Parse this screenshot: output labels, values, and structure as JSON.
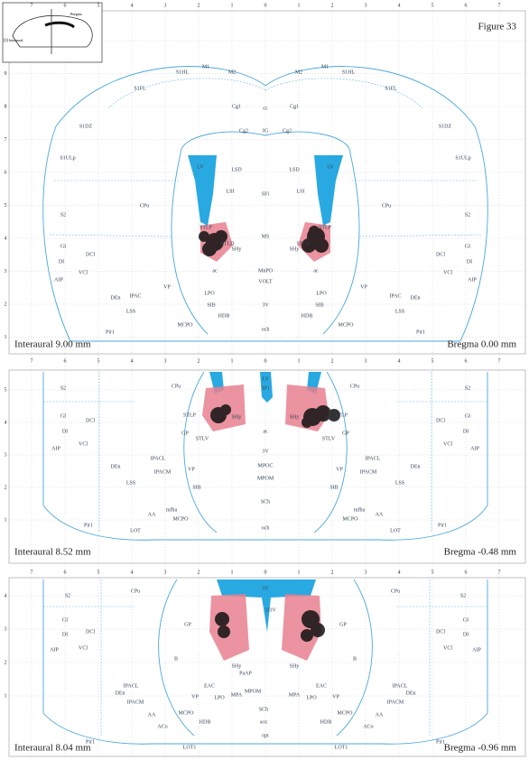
{
  "figure_label": "Figure 33",
  "ruler": [
    "7",
    "6",
    "5",
    "4",
    "3",
    "2",
    "1",
    "0",
    "1",
    "2",
    "3",
    "4",
    "5",
    "6",
    "7"
  ],
  "inset": {
    "labels": [
      "Interaural",
      "Bregma"
    ]
  },
  "panels": [
    {
      "interaural": "Interaural 9.00 mm",
      "bregma": "Bregma 0.00 mm",
      "side_ticks": [
        "10",
        "9",
        "8",
        "7",
        "6",
        "5",
        "4",
        "3",
        "2",
        "1"
      ],
      "regions": [
        "S1FL",
        "S1HL",
        "M1",
        "M2",
        "Cg1",
        "Cg2",
        "S1DZ",
        "S1ULp",
        "S2",
        "CPu",
        "GI",
        "DI",
        "AIP",
        "LV",
        "LSD",
        "LSI",
        "STLP",
        "STLD",
        "SHy",
        "VP",
        "LPO",
        "SIB",
        "HDB",
        "MCPO",
        "IPAC",
        "Pir1",
        "DEn",
        "DCl",
        "VCl",
        "LSS",
        "ac"
      ],
      "midline": [
        "cc",
        "SFi",
        "MS",
        "MnPO",
        "VOLT",
        "och",
        "3V",
        "IG"
      ]
    },
    {
      "interaural": "Interaural 8.52 mm",
      "bregma": "Bregma -0.48 mm",
      "side_ticks": [
        "5",
        "4",
        "3",
        "2",
        "1"
      ],
      "regions": [
        "S2",
        "CPu",
        "GI",
        "DI",
        "AIP",
        "DEn",
        "IPACL",
        "IPACM",
        "GP",
        "STLP",
        "VP",
        "SIB",
        "LSS",
        "mfba",
        "MCPO",
        "AA",
        "Pir1",
        "LOT",
        "DCl",
        "VCl",
        "SHy",
        "STLV"
      ],
      "midline": [
        "LV",
        "3V",
        "MPOC",
        "MPOM",
        "SCh",
        "och",
        "SFi",
        "ac"
      ]
    },
    {
      "interaural": "Interaural 8.04 mm",
      "bregma": "Bregma -0.96 mm",
      "side_ticks": [
        "4",
        "3",
        "2",
        "1"
      ],
      "regions": [
        "S2",
        "CPu",
        "GI",
        "DI",
        "AIP",
        "GP",
        "B",
        "EAC",
        "VP",
        "LPO",
        "MCPO",
        "HDB",
        "AA",
        "DEn",
        "IPACL",
        "IPACM",
        "Pir1",
        "LOT1",
        "DCl",
        "VCl",
        "MPA",
        "SHy",
        "ACo"
      ],
      "midline": [
        "3V",
        "PaAP",
        "MPOM",
        "SCh",
        "opt",
        "sox",
        "D3V"
      ]
    }
  ]
}
